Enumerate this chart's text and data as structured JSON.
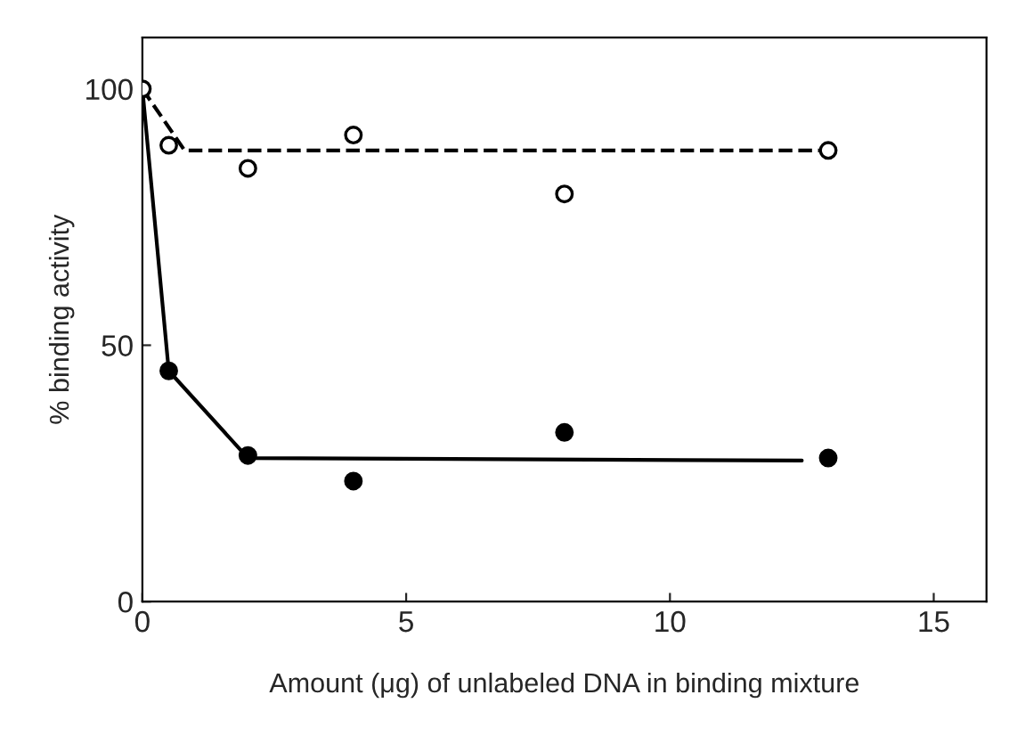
{
  "chart_data": {
    "type": "scatter",
    "xlabel": "Amount (μg) of unlabeled DNA in binding mixture",
    "ylabel": "% binding activity",
    "xlim": [
      0,
      16
    ],
    "xticks": [
      0,
      5,
      10,
      15
    ],
    "ylim": [
      0,
      110
    ],
    "yticks": [
      0,
      50,
      100
    ],
    "grid": false,
    "legend": false,
    "series": [
      {
        "color": "#ffffff",
        "marker": "circle",
        "x": [
          0,
          0.5,
          2,
          4,
          8,
          13
        ],
        "values": [
          100,
          89,
          84.5,
          91,
          79.5,
          88
        ]
      },
      {
        "color": "#000000",
        "marker": "circle",
        "x": [
          0.5,
          2,
          4,
          8,
          13
        ],
        "values": [
          45,
          28.5,
          23.5,
          33,
          28
        ]
      },
      {
        "type": "line",
        "color": "#000000",
        "line_style": "dashed",
        "marker": "none",
        "x": [
          0,
          0.8,
          13
        ],
        "values": [
          100,
          88,
          88
        ]
      },
      {
        "type": "line",
        "color": "#000000",
        "line_style": "solid",
        "marker": "none",
        "x": [
          0,
          0.5,
          2,
          12.5
        ],
        "values": [
          100,
          45,
          28,
          27.5
        ]
      }
    ]
  }
}
